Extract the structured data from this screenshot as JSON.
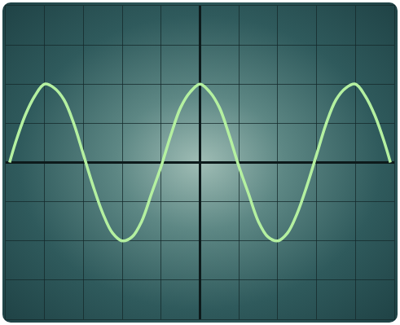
{
  "chart_data": {
    "type": "line",
    "x": [
      -4.9,
      -4.75,
      -4.5,
      -4.25,
      -4.0,
      -3.75,
      -3.5,
      -3.25,
      -3.0,
      -2.75,
      -2.5,
      -2.25,
      -2.0,
      -1.75,
      -1.5,
      -1.25,
      -1.0,
      -0.75,
      -0.5,
      -0.25,
      0,
      0.25,
      0.5,
      0.75,
      1.0,
      1.25,
      1.5,
      1.75,
      2.0,
      2.25,
      2.5,
      2.75,
      3.0,
      3.25,
      3.5,
      3.75,
      4.0,
      4.25,
      4.5,
      4.75,
      4.9
    ],
    "values": [
      0.0,
      0.5,
      1.2,
      1.7,
      2.0,
      1.9,
      1.6,
      1.0,
      0.2,
      -0.6,
      -1.3,
      -1.8,
      -2.0,
      -1.9,
      -1.5,
      -0.8,
      -0.1,
      0.7,
      1.4,
      1.8,
      2.0,
      1.8,
      1.4,
      0.7,
      -0.1,
      -0.8,
      -1.5,
      -1.9,
      -2.0,
      -1.8,
      -1.3,
      -0.6,
      0.2,
      1.0,
      1.6,
      1.9,
      2.0,
      1.7,
      1.2,
      0.5,
      0.0
    ],
    "xlim": [
      -5,
      5
    ],
    "ylim": [
      -4,
      4
    ],
    "xticks": [
      -5,
      -4,
      -3,
      -2,
      -1,
      0,
      1,
      2,
      3,
      4,
      5
    ],
    "yticks": [
      -4,
      -3,
      -2,
      -1,
      0,
      1,
      2,
      3,
      4
    ],
    "grid": true,
    "tick_labels": false,
    "color": "#b4f0a0"
  }
}
